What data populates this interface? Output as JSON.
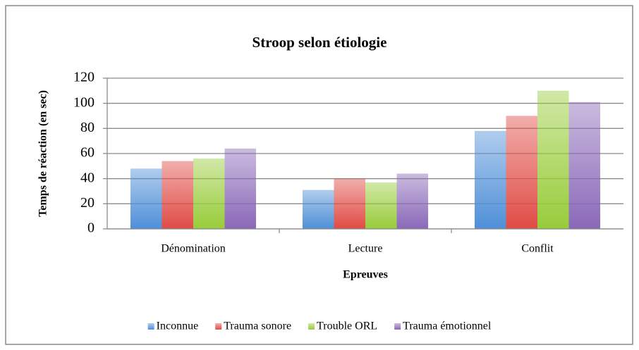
{
  "chart_data": {
    "type": "bar",
    "title": "Stroop selon étiologie",
    "xlabel": "Epreuves",
    "ylabel": "Temps de réaction (en sec)",
    "categories": [
      "Dénomination",
      "Lecture",
      "Conflit"
    ],
    "series": [
      {
        "name": "Inconnue",
        "color": "#4f8fd8",
        "values": [
          48,
          31,
          78
        ]
      },
      {
        "name": "Trauma sonore",
        "color": "#e04b45",
        "values": [
          54,
          40,
          90
        ]
      },
      {
        "name": "Trouble ORL",
        "color": "#98cc3a",
        "values": [
          56,
          37,
          110
        ]
      },
      {
        "name": "Trauma émotionnel",
        "color": "#8a68b8",
        "values": [
          64,
          44,
          101
        ]
      }
    ],
    "ylim": [
      0,
      120
    ],
    "yticks": [
      0,
      20,
      40,
      60,
      80,
      100,
      120
    ],
    "grid": true,
    "legend": "bottom"
  }
}
